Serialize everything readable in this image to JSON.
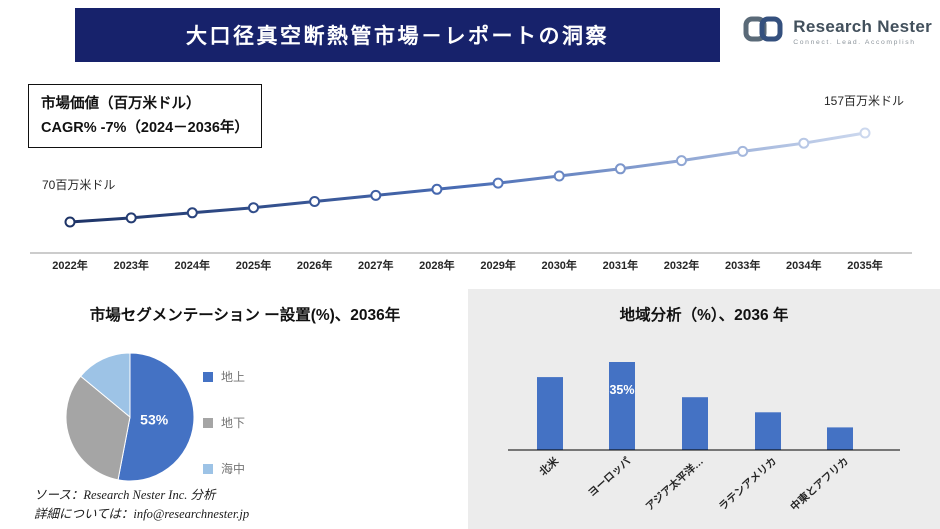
{
  "header": {
    "title": "大口径真空断熱管市場－レポートの洞察"
  },
  "brand": {
    "name": "Research Nester",
    "tagline": "Connect. Lead. Accomplish"
  },
  "kpi": {
    "line1": "市場価値（百万米ドル）",
    "line2": "CAGR% -7%（2024－2036年）"
  },
  "footer": {
    "source": "ソース：Research Nester Inc. 分析",
    "contact": "詳細については：info@researchnester.jp"
  },
  "colors": {
    "banner": "#17226B",
    "accent_blue": "#4472C4"
  },
  "chart_data": [
    {
      "type": "line",
      "title": "市場価値（百万米ドル）",
      "x": [
        "2022年",
        "2023年",
        "2024年",
        "2025年",
        "2026年",
        "2027年",
        "2028年",
        "2029年",
        "2030年",
        "2031年",
        "2032年",
        "2033年",
        "2034年",
        "2035年"
      ],
      "values": [
        70,
        74,
        79,
        84,
        90,
        96,
        102,
        108,
        115,
        122,
        130,
        139,
        147,
        157
      ],
      "start_label": "70百万米ドル",
      "end_label": "157百万米ドル",
      "ylim": [
        60,
        170
      ],
      "grid": false,
      "line_gradient": [
        "#1d3366",
        "#4a6db5",
        "#ccd8ee"
      ]
    },
    {
      "type": "pie",
      "title": "市場セグメンテーション ー設置(%)、2036年",
      "labels": [
        "地上",
        "地下",
        "海中"
      ],
      "values": [
        53,
        33,
        14
      ],
      "colors": [
        "#4472C4",
        "#A5A5A5",
        "#9DC3E6"
      ],
      "data_label": "53%",
      "legend_position": "right"
    },
    {
      "type": "bar",
      "title": "地域分析（%）、2036 年",
      "categories": [
        "北米",
        "ヨーロッパ",
        "アジア太平洋…",
        "ラテンアメリカ",
        "中東とアフリカ"
      ],
      "values": [
        29,
        35,
        21,
        15,
        9
      ],
      "ylim": [
        0,
        40
      ],
      "grid": false,
      "bar_color": "#4472C4",
      "panel_bg": "#ECECEC",
      "data_label": {
        "category": "ヨーロッパ",
        "text": "35%"
      }
    }
  ]
}
